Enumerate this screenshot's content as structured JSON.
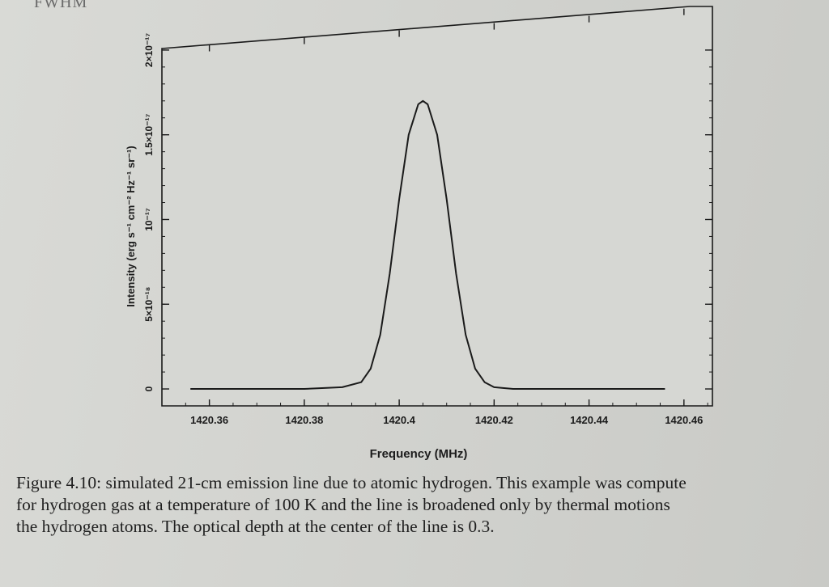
{
  "page": {
    "header_fragment": "FWHM",
    "caption": {
      "label": "Figure 4.10:",
      "lines": [
        " simulated 21-cm emission line due to atomic hydrogen. This example was compute",
        "for hydrogen gas at a temperature of 100 K and the line is broadened only by thermal motions",
        "the hydrogen atoms. The optical depth at the center of the line is 0.3."
      ]
    }
  },
  "chart_data": {
    "type": "line",
    "title": "",
    "xlabel": "Frequency (MHz)",
    "ylabel": "Intensity (erg s⁻¹ cm⁻² Hz⁻¹ sr⁻¹)",
    "xlim": [
      1420.35,
      1420.466
    ],
    "ylim": [
      -1e-18,
      2.2e-17
    ],
    "x_ticks": [
      1420.36,
      1420.38,
      1420.4,
      1420.42,
      1420.44,
      1420.46
    ],
    "x_tick_labels": [
      "1420.36",
      "1420.38",
      "1420.4",
      "1420.42",
      "1420.44",
      "1420.46"
    ],
    "y_ticks": [
      0,
      5e-18,
      1e-17,
      1.5e-17,
      2e-17
    ],
    "y_tick_labels": [
      "0",
      "5×10⁻¹⁸",
      "10⁻¹⁷",
      "1.5×10⁻¹⁷",
      "2×10⁻¹⁷"
    ],
    "grid": false,
    "legend": "none",
    "line_color": "#1a1a1a",
    "series": [
      {
        "x": [
          1420.356,
          1420.37,
          1420.38,
          1420.388,
          1420.392,
          1420.394,
          1420.396,
          1420.398,
          1420.4,
          1420.402,
          1420.404,
          1420.405,
          1420.406,
          1420.408,
          1420.41,
          1420.412,
          1420.414,
          1420.416,
          1420.418,
          1420.42,
          1420.424,
          1420.43,
          1420.44,
          1420.45,
          1420.456
        ],
        "y": [
          0,
          0,
          0,
          1e-19,
          4e-19,
          1.2e-18,
          3.2e-18,
          6.8e-18,
          1.12e-17,
          1.5e-17,
          1.68e-17,
          1.7e-17,
          1.68e-17,
          1.5e-17,
          1.12e-17,
          6.8e-18,
          3.2e-18,
          1.2e-18,
          4e-19,
          1e-19,
          0,
          0,
          0,
          0,
          0
        ]
      }
    ]
  }
}
